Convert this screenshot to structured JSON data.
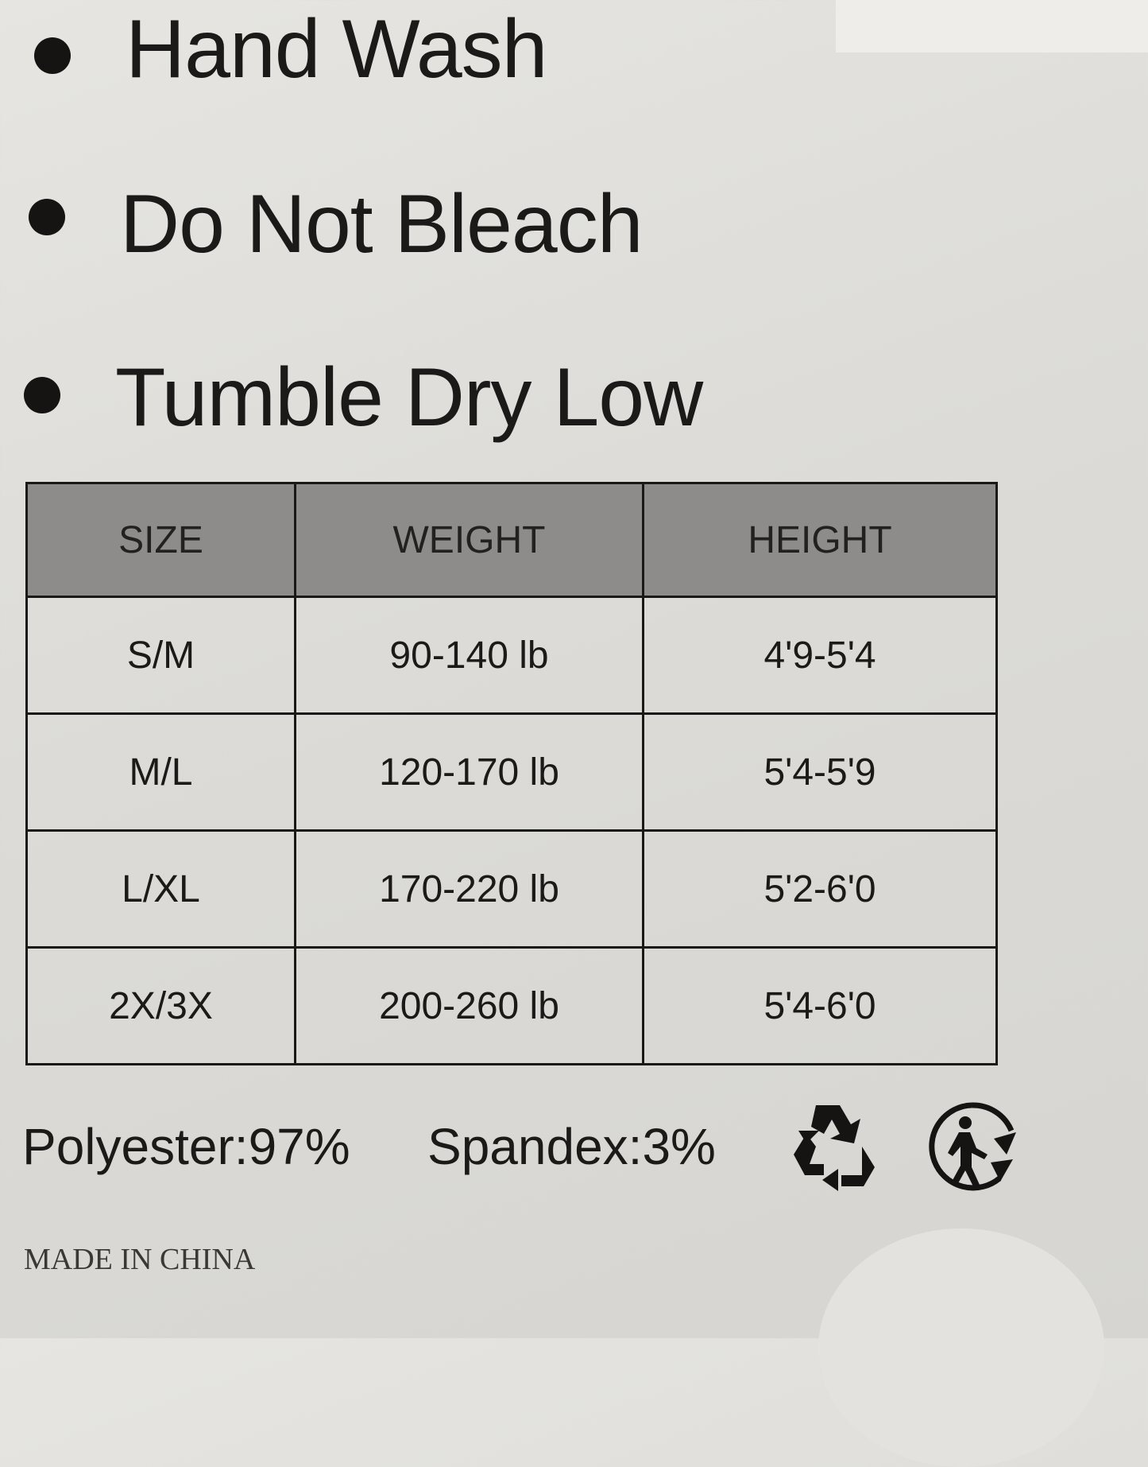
{
  "care_instructions": [
    "Hand Wash",
    "Do Not Bleach",
    "Tumble Dry Low"
  ],
  "size_table": {
    "headers": [
      "SIZE",
      "WEIGHT",
      "HEIGHT"
    ],
    "rows": [
      [
        "S/M",
        "90-140 lb",
        "4'9-5'4"
      ],
      [
        "M/L",
        "120-170 lb",
        "5'4-5'9"
      ],
      [
        "L/XL",
        "170-220 lb",
        "5'2-6'0"
      ],
      [
        "2X/3X",
        "200-260 lb",
        "5'4-6'0"
      ]
    ]
  },
  "composition": {
    "polyester": "Polyester:97%",
    "spandex": "Spandex:3%"
  },
  "icons": [
    "recycle-icon",
    "tidyman-recycle-icon"
  ],
  "origin": "MADE IN CHINA"
}
